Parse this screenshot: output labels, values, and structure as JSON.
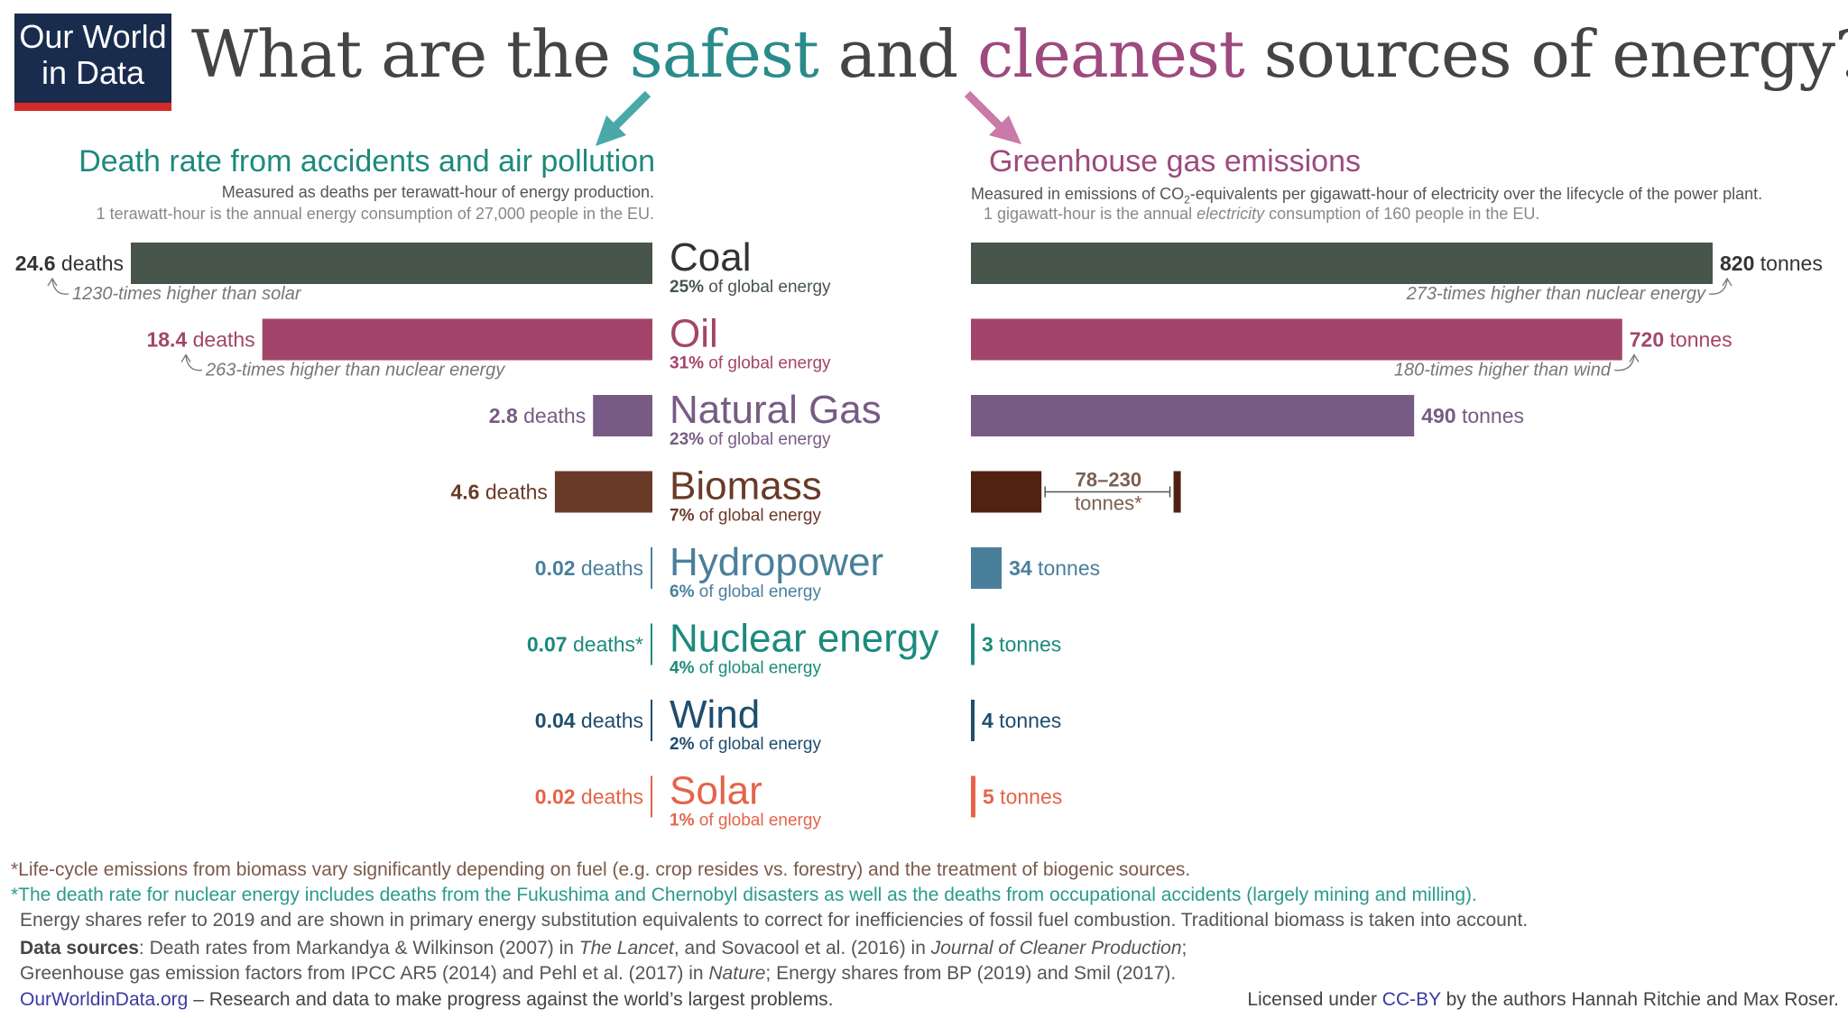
{
  "logo": {
    "line1": "Our World",
    "line2": "in Data"
  },
  "title": {
    "part1": "What are the ",
    "safest": "safest",
    "part2": " and ",
    "cleanest": "cleanest",
    "part3": " sources of energy?"
  },
  "left_panel": {
    "title": "Death rate from accidents and air pollution",
    "subtitle": "Measured as deaths per terawatt-hour of energy production.",
    "note": "1 terawatt-hour is the annual energy consumption of 27,000 people in the EU."
  },
  "right_panel": {
    "title": "Greenhouse gas emissions",
    "subtitle_a": "Measured in emissions of CO",
    "subtitle_sub": "2",
    "subtitle_b": "-equivalents per gigawatt-hour of electricity over the lifecycle of the power plant.",
    "note_a": "1 gigawatt-hour is the annual ",
    "note_italic": "electricity",
    "note_b": " consumption of 160 people in the EU."
  },
  "chart_data": [
    {
      "type": "bar",
      "title": "Death rate from accidents and air pollution",
      "categories": [
        "Coal",
        "Oil",
        "Natural Gas",
        "Biomass",
        "Hydropower",
        "Nuclear energy",
        "Wind",
        "Solar"
      ],
      "values": [
        24.6,
        18.4,
        2.8,
        4.6,
        0.02,
        0.07,
        0.04,
        0.02
      ],
      "value_labels": [
        "24.6",
        "18.4",
        "2.8",
        "4.6",
        "0.02",
        "0.07",
        "0.04",
        "0.02"
      ],
      "unit_labels": [
        "deaths",
        "deaths",
        "deaths",
        "deaths",
        "deaths",
        "deaths*",
        "deaths",
        "deaths"
      ],
      "annotations": [
        {
          "category": "Coal",
          "text": "1230-times higher than solar"
        },
        {
          "category": "Oil",
          "text": "263-times higher than nuclear energy"
        }
      ]
    },
    {
      "type": "bar",
      "title": "Greenhouse gas emissions",
      "categories": [
        "Coal",
        "Oil",
        "Natural Gas",
        "Biomass",
        "Hydropower",
        "Nuclear energy",
        "Wind",
        "Solar"
      ],
      "values": [
        820,
        720,
        490,
        78,
        34,
        3,
        4,
        5
      ],
      "range": {
        "category": "Biomass",
        "low": 78,
        "high": 230
      },
      "value_labels": [
        "820",
        "720",
        "490",
        "78–230",
        "34",
        "3",
        "4",
        "5"
      ],
      "unit_labels": [
        "tonnes",
        "tonnes",
        "tonnes",
        "tonnes*",
        "tonnes",
        "tonnes",
        "tonnes",
        "tonnes"
      ],
      "annotations": [
        {
          "category": "Coal",
          "text": "273-times higher than nuclear energy"
        },
        {
          "category": "Oil",
          "text": "180-times higher than wind"
        }
      ]
    }
  ],
  "sources": [
    {
      "name": "Coal",
      "share_pct": "25%",
      "share_text": " of global energy",
      "color": "#47554b"
    },
    {
      "name": "Oil",
      "share_pct": "31%",
      "share_text": " of global energy",
      "color": "#a3456a"
    },
    {
      "name": "Natural Gas",
      "share_pct": "23%",
      "share_text": " of global energy",
      "color": "#775b84"
    },
    {
      "name": "Biomass",
      "share_pct": "7%",
      "share_text": " of global energy",
      "color": "#6a3a28",
      "right_color": "#4f2213"
    },
    {
      "name": "Hydropower",
      "share_pct": "6%",
      "share_text": " of global energy",
      "color": "#4a7f9b"
    },
    {
      "name": "Nuclear energy",
      "share_pct": "4%",
      "share_text": " of global energy",
      "color": "#1c8a7c"
    },
    {
      "name": "Wind",
      "share_pct": "2%",
      "share_text": " of global energy",
      "color": "#1f4d6e"
    },
    {
      "name": "Solar",
      "share_pct": "1%",
      "share_text": " of global energy",
      "color": "#e4644a"
    }
  ],
  "footer": {
    "note1": "*Life-cycle emissions from biomass vary significantly depending on fuel (e.g. crop resides vs. forestry) and the treatment of biogenic sources.",
    "note2": "*The death rate for nuclear energy includes deaths from the Fukushima and Chernobyl disasters as well as the deaths from occupational accidents (largely mining and milling).",
    "note3": "Energy shares refer to 2019 and are shown in primary energy substitution equivalents to correct for inefficiencies of fossil fuel combustion. Traditional biomass is taken into account.",
    "sources_label": "Data sources",
    "sources_a": ": Death rates from Markandya & Wilkinson (2007) in ",
    "sources_lancet": "The Lancet",
    "sources_b": ", and Sovacool et al. (2016) in ",
    "sources_jcp": "Journal of Cleaner Production",
    "sources_c": ";",
    "sources_line2_a": "Greenhouse gas emission factors from IPCC AR5 (2014) and Pehl et al. (2017) in ",
    "sources_nature": "Nature",
    "sources_line2_b": "; Energy shares from BP (2019) and Smil (2017).",
    "site": "OurWorldinData.org",
    "site_desc": " – Research and data to make progress against the world’s largest problems.",
    "license_a": "Licensed under ",
    "license_link": "CC-BY",
    "license_b": " by the authors Hannah Ritchie and Max Roser."
  },
  "colors": {
    "navy": "#1a2c4e",
    "teal": "#2a8b8b",
    "plum": "#9e4a7e",
    "logo_red": "#d42a2a",
    "link": "#3a3aa0"
  }
}
